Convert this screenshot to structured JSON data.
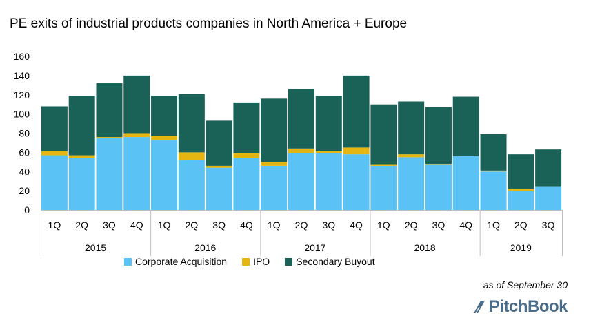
{
  "chart_data": {
    "type": "bar",
    "stacked": true,
    "title": "PE exits of industrial products companies in North America + Europe",
    "xlabel": "",
    "ylabel": "",
    "ylim": [
      0,
      160
    ],
    "yticks": [
      0,
      20,
      40,
      60,
      80,
      100,
      120,
      140,
      160
    ],
    "grid": false,
    "legend_position": "bottom",
    "quarters": [
      "1Q",
      "2Q",
      "3Q",
      "4Q",
      "1Q",
      "2Q",
      "3Q",
      "4Q",
      "1Q",
      "2Q",
      "3Q",
      "4Q",
      "1Q",
      "2Q",
      "3Q",
      "4Q",
      "1Q",
      "2Q",
      "3Q"
    ],
    "years": [
      {
        "label": "2015",
        "count": 4
      },
      {
        "label": "2016",
        "count": 4
      },
      {
        "label": "2017",
        "count": 4
      },
      {
        "label": "2018",
        "count": 4
      },
      {
        "label": "2019",
        "count": 3
      }
    ],
    "series": [
      {
        "name": "Corporate Acquisition",
        "color": "#5bc2f5",
        "values": [
          57,
          54,
          75,
          76,
          73,
          52,
          44,
          54,
          46,
          59,
          59,
          58,
          46,
          55,
          47,
          56,
          40,
          20,
          24
        ]
      },
      {
        "name": "IPO",
        "color": "#e5b612",
        "values": [
          4,
          3,
          1,
          4,
          4,
          8,
          2,
          5,
          4,
          5,
          2,
          7,
          1,
          3,
          1,
          0,
          1,
          2,
          0
        ]
      },
      {
        "name": "Secondary Buyout",
        "color": "#1a6158",
        "values": [
          47,
          62,
          56,
          60,
          42,
          61,
          47,
          53,
          66,
          62,
          58,
          75,
          63,
          55,
          59,
          62,
          38,
          36,
          39
        ]
      }
    ],
    "footnote": "as of September 30",
    "brand": "PitchBook"
  }
}
